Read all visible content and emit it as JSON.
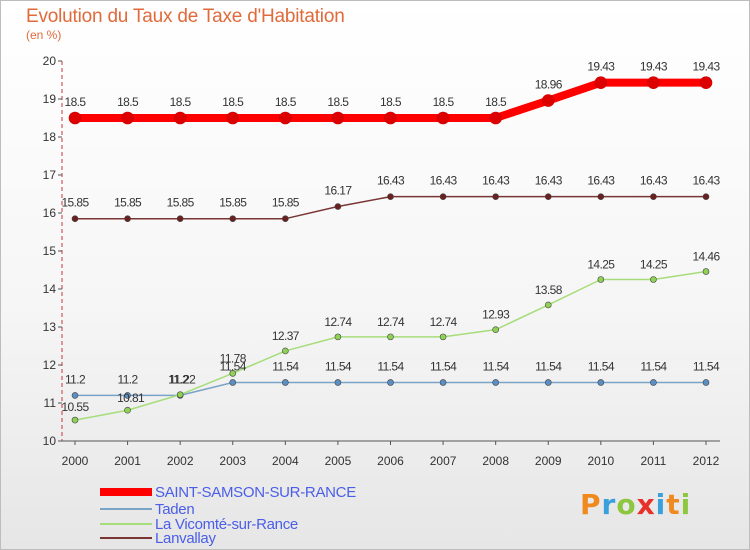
{
  "chart_data": {
    "type": "line",
    "title": "Evolution du Taux de Taxe d'Habitation",
    "unit_label": "(en %)",
    "x": [
      "2000",
      "2001",
      "2002",
      "2003",
      "2004",
      "2005",
      "2006",
      "2007",
      "2008",
      "2009",
      "2010",
      "2011",
      "2012"
    ],
    "ylim": [
      10,
      20
    ],
    "yticks": [
      "10",
      "11",
      "12",
      "13",
      "14",
      "15",
      "16",
      "17",
      "18",
      "19",
      "20"
    ],
    "grid": false,
    "legend_position": "bottom-left",
    "series": [
      {
        "name": "SAINT-SAMSON-SUR-RANCE",
        "color": "#ff0000",
        "line_width": 8,
        "marker_color": "#dd0000",
        "values": [
          18.5,
          18.5,
          18.5,
          18.5,
          18.5,
          18.5,
          18.5,
          18.5,
          18.5,
          18.96,
          19.43,
          19.43,
          19.43
        ],
        "labels": [
          "18.5",
          "18.5",
          "18.5",
          "18.5",
          "18.5",
          "18.5",
          "18.5",
          "18.5",
          "18.5",
          "18.96",
          "19.43",
          "19.43",
          "19.43"
        ]
      },
      {
        "name": "Taden",
        "color": "#7aa3c8",
        "line_width": 1.5,
        "marker_color": "#5b8fc4",
        "values": [
          11.2,
          11.2,
          11.2,
          11.54,
          11.54,
          11.54,
          11.54,
          11.54,
          11.54,
          11.54,
          11.54,
          11.54,
          11.54
        ],
        "labels": [
          "11.2",
          "11.2",
          "11.2",
          "11.54",
          "11.54",
          "11.54",
          "11.54",
          "11.54",
          "11.54",
          "11.54",
          "11.54",
          "11.54",
          "11.54"
        ]
      },
      {
        "name": "La Vicomté-sur-Rance",
        "color": "#a6dd7a",
        "line_width": 1.5,
        "marker_color": "#8fd155",
        "values": [
          10.55,
          10.81,
          11.22,
          11.78,
          12.37,
          12.74,
          12.74,
          12.74,
          12.93,
          13.58,
          14.25,
          14.25,
          14.46
        ],
        "labels": [
          "10.55",
          "10.81",
          "11.22",
          "11.78",
          "12.37",
          "12.74",
          "12.74",
          "12.74",
          "12.93",
          "13.58",
          "14.25",
          "14.25",
          "14.46"
        ]
      },
      {
        "name": "Lanvallay",
        "color": "#7a3636",
        "line_width": 1.5,
        "marker_color": "#6a2020",
        "values": [
          15.85,
          15.85,
          15.85,
          15.85,
          15.85,
          16.17,
          16.43,
          16.43,
          16.43,
          16.43,
          16.43,
          16.43,
          16.43
        ],
        "labels": [
          "15.85",
          "15.85",
          "15.85",
          "15.85",
          "15.85",
          "16.17",
          "16.43",
          "16.43",
          "16.43",
          "16.43",
          "16.43",
          "16.43",
          "16.43"
        ]
      }
    ]
  },
  "logo": {
    "text": "Proxiti",
    "colors": [
      "#f08a1e",
      "#3aa0dc",
      "#8dc63f",
      "#e8312a",
      "#3aa0dc",
      "#f08a1e",
      "#8dc63f"
    ]
  }
}
